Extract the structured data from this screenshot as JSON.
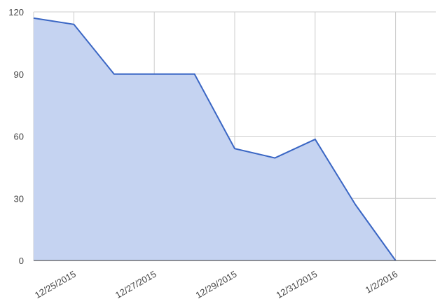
{
  "chart_data": {
    "type": "area",
    "categories": [
      null,
      "12/25/2015",
      null,
      "12/27/2015",
      null,
      "12/29/2015",
      null,
      "12/31/2015",
      null,
      "1/2/2016"
    ],
    "values": [
      117,
      114,
      90,
      90,
      90,
      54,
      49.5,
      58.5,
      27,
      0
    ],
    "color": "#3a66c4",
    "fill": "#c5d3f1",
    "ylim": [
      0,
      120
    ],
    "yticks": [
      0,
      30,
      60,
      90,
      120
    ],
    "grid": true
  }
}
